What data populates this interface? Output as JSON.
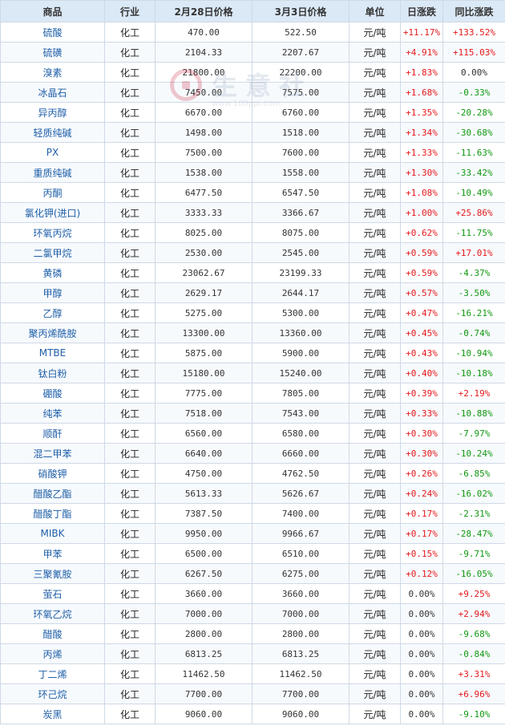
{
  "headers": [
    "商品",
    "行业",
    "2月28日价格",
    "3月3日价格",
    "单位",
    "日涨跌",
    "同比涨跌"
  ],
  "watermark": {
    "text": "生意社",
    "url": "www.100ppi.com"
  },
  "colors": {
    "up": "#e3191c",
    "down": "#119911",
    "header_bg": "#dbe8f6",
    "link": "#1f5fa8"
  },
  "rows": [
    {
      "name": "硫酸",
      "industry": "化工",
      "p1": "470.00",
      "p2": "522.50",
      "unit": "元/吨",
      "day": "+11.17%",
      "yoy": "+133.52%"
    },
    {
      "name": "硫磺",
      "industry": "化工",
      "p1": "2104.33",
      "p2": "2207.67",
      "unit": "元/吨",
      "day": "+4.91%",
      "yoy": "+115.03%"
    },
    {
      "name": "溴素",
      "industry": "化工",
      "p1": "21800.00",
      "p2": "22200.00",
      "unit": "元/吨",
      "day": "+1.83%",
      "yoy": "0.00%"
    },
    {
      "name": "冰晶石",
      "industry": "化工",
      "p1": "7450.00",
      "p2": "7575.00",
      "unit": "元/吨",
      "day": "+1.68%",
      "yoy": "-0.33%"
    },
    {
      "name": "异丙醇",
      "industry": "化工",
      "p1": "6670.00",
      "p2": "6760.00",
      "unit": "元/吨",
      "day": "+1.35%",
      "yoy": "-20.28%"
    },
    {
      "name": "轻质纯碱",
      "industry": "化工",
      "p1": "1498.00",
      "p2": "1518.00",
      "unit": "元/吨",
      "day": "+1.34%",
      "yoy": "-30.68%"
    },
    {
      "name": "PX",
      "industry": "化工",
      "p1": "7500.00",
      "p2": "7600.00",
      "unit": "元/吨",
      "day": "+1.33%",
      "yoy": "-11.63%"
    },
    {
      "name": "重质纯碱",
      "industry": "化工",
      "p1": "1538.00",
      "p2": "1558.00",
      "unit": "元/吨",
      "day": "+1.30%",
      "yoy": "-33.42%"
    },
    {
      "name": "丙酮",
      "industry": "化工",
      "p1": "6477.50",
      "p2": "6547.50",
      "unit": "元/吨",
      "day": "+1.08%",
      "yoy": "-10.49%"
    },
    {
      "name": "氯化钾(进口)",
      "industry": "化工",
      "p1": "3333.33",
      "p2": "3366.67",
      "unit": "元/吨",
      "day": "+1.00%",
      "yoy": "+25.86%"
    },
    {
      "name": "环氧丙烷",
      "industry": "化工",
      "p1": "8025.00",
      "p2": "8075.00",
      "unit": "元/吨",
      "day": "+0.62%",
      "yoy": "-11.75%"
    },
    {
      "name": "二氯甲烷",
      "industry": "化工",
      "p1": "2530.00",
      "p2": "2545.00",
      "unit": "元/吨",
      "day": "+0.59%",
      "yoy": "+17.01%"
    },
    {
      "name": "黄磷",
      "industry": "化工",
      "p1": "23062.67",
      "p2": "23199.33",
      "unit": "元/吨",
      "day": "+0.59%",
      "yoy": "-4.37%"
    },
    {
      "name": "甲醇",
      "industry": "化工",
      "p1": "2629.17",
      "p2": "2644.17",
      "unit": "元/吨",
      "day": "+0.57%",
      "yoy": "-3.50%"
    },
    {
      "name": "乙醇",
      "industry": "化工",
      "p1": "5275.00",
      "p2": "5300.00",
      "unit": "元/吨",
      "day": "+0.47%",
      "yoy": "-16.21%"
    },
    {
      "name": "聚丙烯酰胺",
      "industry": "化工",
      "p1": "13300.00",
      "p2": "13360.00",
      "unit": "元/吨",
      "day": "+0.45%",
      "yoy": "-0.74%"
    },
    {
      "name": "MTBE",
      "industry": "化工",
      "p1": "5875.00",
      "p2": "5900.00",
      "unit": "元/吨",
      "day": "+0.43%",
      "yoy": "-10.94%"
    },
    {
      "name": "钛白粉",
      "industry": "化工",
      "p1": "15180.00",
      "p2": "15240.00",
      "unit": "元/吨",
      "day": "+0.40%",
      "yoy": "-10.18%"
    },
    {
      "name": "硼酸",
      "industry": "化工",
      "p1": "7775.00",
      "p2": "7805.00",
      "unit": "元/吨",
      "day": "+0.39%",
      "yoy": "+2.19%"
    },
    {
      "name": "纯苯",
      "industry": "化工",
      "p1": "7518.00",
      "p2": "7543.00",
      "unit": "元/吨",
      "day": "+0.33%",
      "yoy": "-10.88%"
    },
    {
      "name": "顺酐",
      "industry": "化工",
      "p1": "6560.00",
      "p2": "6580.00",
      "unit": "元/吨",
      "day": "+0.30%",
      "yoy": "-7.97%"
    },
    {
      "name": "混二甲苯",
      "industry": "化工",
      "p1": "6640.00",
      "p2": "6660.00",
      "unit": "元/吨",
      "day": "+0.30%",
      "yoy": "-10.24%"
    },
    {
      "name": "硝酸钾",
      "industry": "化工",
      "p1": "4750.00",
      "p2": "4762.50",
      "unit": "元/吨",
      "day": "+0.26%",
      "yoy": "-6.85%"
    },
    {
      "name": "醋酸乙酯",
      "industry": "化工",
      "p1": "5613.33",
      "p2": "5626.67",
      "unit": "元/吨",
      "day": "+0.24%",
      "yoy": "-16.02%"
    },
    {
      "name": "醋酸丁酯",
      "industry": "化工",
      "p1": "7387.50",
      "p2": "7400.00",
      "unit": "元/吨",
      "day": "+0.17%",
      "yoy": "-2.31%"
    },
    {
      "name": "MIBK",
      "industry": "化工",
      "p1": "9950.00",
      "p2": "9966.67",
      "unit": "元/吨",
      "day": "+0.17%",
      "yoy": "-28.47%"
    },
    {
      "name": "甲苯",
      "industry": "化工",
      "p1": "6500.00",
      "p2": "6510.00",
      "unit": "元/吨",
      "day": "+0.15%",
      "yoy": "-9.71%"
    },
    {
      "name": "三聚氰胺",
      "industry": "化工",
      "p1": "6267.50",
      "p2": "6275.00",
      "unit": "元/吨",
      "day": "+0.12%",
      "yoy": "-16.05%"
    },
    {
      "name": "萤石",
      "industry": "化工",
      "p1": "3660.00",
      "p2": "3660.00",
      "unit": "元/吨",
      "day": "0.00%",
      "yoy": "+9.25%"
    },
    {
      "name": "环氧乙烷",
      "industry": "化工",
      "p1": "7000.00",
      "p2": "7000.00",
      "unit": "元/吨",
      "day": "0.00%",
      "yoy": "+2.94%"
    },
    {
      "name": "醋酸",
      "industry": "化工",
      "p1": "2800.00",
      "p2": "2800.00",
      "unit": "元/吨",
      "day": "0.00%",
      "yoy": "-9.68%"
    },
    {
      "name": "丙烯",
      "industry": "化工",
      "p1": "6813.25",
      "p2": "6813.25",
      "unit": "元/吨",
      "day": "0.00%",
      "yoy": "-0.84%"
    },
    {
      "name": "丁二烯",
      "industry": "化工",
      "p1": "11462.50",
      "p2": "11462.50",
      "unit": "元/吨",
      "day": "0.00%",
      "yoy": "+3.31%"
    },
    {
      "name": "环己烷",
      "industry": "化工",
      "p1": "7700.00",
      "p2": "7700.00",
      "unit": "元/吨",
      "day": "0.00%",
      "yoy": "+6.96%"
    },
    {
      "name": "炭黑",
      "industry": "化工",
      "p1": "9060.00",
      "p2": "9060.00",
      "unit": "元/吨",
      "day": "0.00%",
      "yoy": "-9.10%"
    }
  ]
}
